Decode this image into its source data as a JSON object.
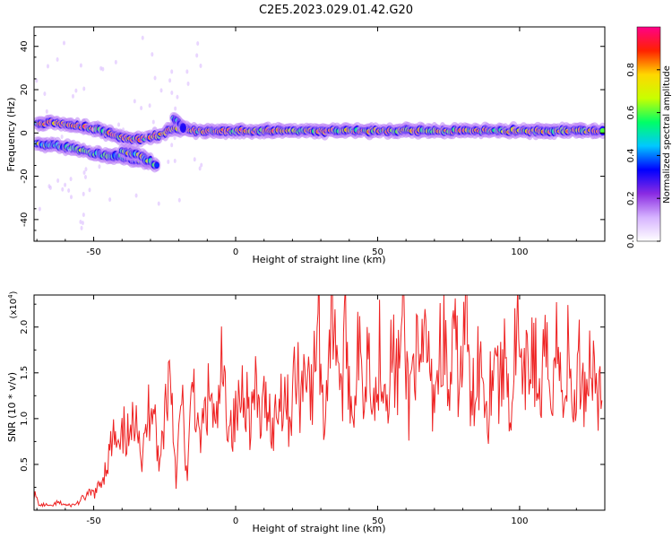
{
  "title": "C2E5.2023.029.01.42.G20",
  "colors": {
    "snr_line": "#ee2222",
    "colormap": [
      "#ffffff",
      "#d6b3ff",
      "#8a2be2",
      "#0000ff",
      "#00c8ff",
      "#00ff66",
      "#c8ff00",
      "#ffd700",
      "#ff2200",
      "#ff0088"
    ]
  },
  "chart_data": [
    {
      "type": "heatmap",
      "xlabel": "Height of straight line (km)",
      "ylabel": "Frequency (Hz)",
      "xlim": [
        -71,
        130
      ],
      "ylim": [
        -50,
        49
      ],
      "xticks": [
        "-50",
        "0",
        "50",
        "100"
      ],
      "xtick_values": [
        -50,
        0,
        50,
        100
      ],
      "yticks": [
        "-40",
        "-20",
        "0",
        "20",
        "40"
      ],
      "ytick_values": [
        -40,
        -20,
        0,
        20,
        40
      ],
      "colorbar": {
        "label": "Normalized spectral amplitude",
        "range": [
          0,
          1
        ],
        "ticks": [
          "0.0",
          "0.2",
          "0.4",
          "0.6",
          "0.8"
        ],
        "tick_values": [
          0.0,
          0.2,
          0.4,
          0.6,
          0.8
        ]
      },
      "tracks": [
        {
          "points": [
            [
              -70,
              4
            ],
            [
              -65,
              5
            ],
            [
              -60,
              4
            ],
            [
              -55,
              3
            ],
            [
              -50,
              2
            ],
            [
              -45,
              0
            ],
            [
              -40,
              -2
            ],
            [
              -35,
              -3
            ],
            [
              -30,
              -2
            ],
            [
              -27,
              -1
            ],
            [
              -24,
              1
            ],
            [
              -21,
              2
            ],
            [
              -18,
              2
            ],
            [
              -14,
              1
            ],
            [
              0,
              1
            ],
            [
              40,
              1
            ],
            [
              80,
              1
            ],
            [
              130,
              1
            ]
          ],
          "amplitude": 0.85
        },
        {
          "points": [
            [
              -70,
              -5
            ],
            [
              -62,
              -6
            ],
            [
              -55,
              -8
            ],
            [
              -48,
              -10
            ],
            [
              -40,
              -11
            ],
            [
              -35,
              -13
            ],
            [
              -30,
              -14
            ]
          ],
          "amplitude": 0.55
        },
        {
          "points": [
            [
              -40,
              -8
            ],
            [
              -35,
              -10
            ],
            [
              -30,
              -13
            ],
            [
              -27,
              -16
            ]
          ],
          "amplitude": 0.6
        },
        {
          "points": [
            [
              -22,
              7
            ],
            [
              -20,
              5
            ],
            [
              -19,
              3
            ],
            [
              -18,
              1
            ]
          ],
          "amplitude": 0.45
        }
      ]
    },
    {
      "type": "line",
      "xlabel": "Height of straight line (km)",
      "ylabel": "SNR (10 * v/v)",
      "y_multiplier": "(x10",
      "y_multiplier_exp": "4",
      "y_multiplier_close": ")",
      "xlim": [
        -71,
        130
      ],
      "ylim": [
        0,
        2.35
      ],
      "xticks": [
        "-50",
        "0",
        "50",
        "100"
      ],
      "xtick_values": [
        -50,
        0,
        50,
        100
      ],
      "yticks": [
        "0.5",
        "1.0",
        "1.5",
        "2.0"
      ],
      "ytick_values": [
        0.5,
        1.0,
        1.5,
        2.0
      ],
      "series": [
        {
          "x_start": -71,
          "x_step": 2,
          "values": [
            0.18,
            0.05,
            0.06,
            0.04,
            0.08,
            0.07,
            0.05,
            0.06,
            0.09,
            0.15,
            0.18,
            0.2,
            0.35,
            0.55,
            0.8,
            0.6,
            0.9,
            0.7,
            1.3,
            0.5,
            1.0,
            1.4,
            0.4,
            1.1,
            1.6,
            0.35,
            1.2,
            0.3,
            1.55,
            0.7,
            1.0,
            1.3,
            0.8,
            1.5,
            1.1,
            0.9,
            1.1,
            1.45,
            1.0,
            1.25,
            0.95,
            1.3,
            0.85,
            1.2,
            1.35,
            1.0,
            1.5,
            1.25,
            1.8,
            1.1,
            2.3,
            0.9,
            1.9,
            2.25,
            1.2,
            1.95,
            1.0,
            1.75,
            1.3,
            1.95,
            1.1,
            1.85,
            1.3,
            1.7,
            1.45,
            2.05,
            1.15,
            1.8,
            1.35,
            1.95,
            1.25,
            1.5,
            2.0,
            1.2,
            1.8,
            1.4,
            2.2,
            1.0,
            1.7,
            1.55,
            1.1,
            1.9,
            1.3,
            1.75,
            1.0,
            2.1,
            1.2,
            1.6,
            1.8,
            1.15,
            1.65,
            1.35,
            1.9,
            1.2,
            1.7,
            1.05,
            1.6,
            1.3,
            1.7,
            1.4,
            1.2
          ]
        }
      ]
    }
  ]
}
